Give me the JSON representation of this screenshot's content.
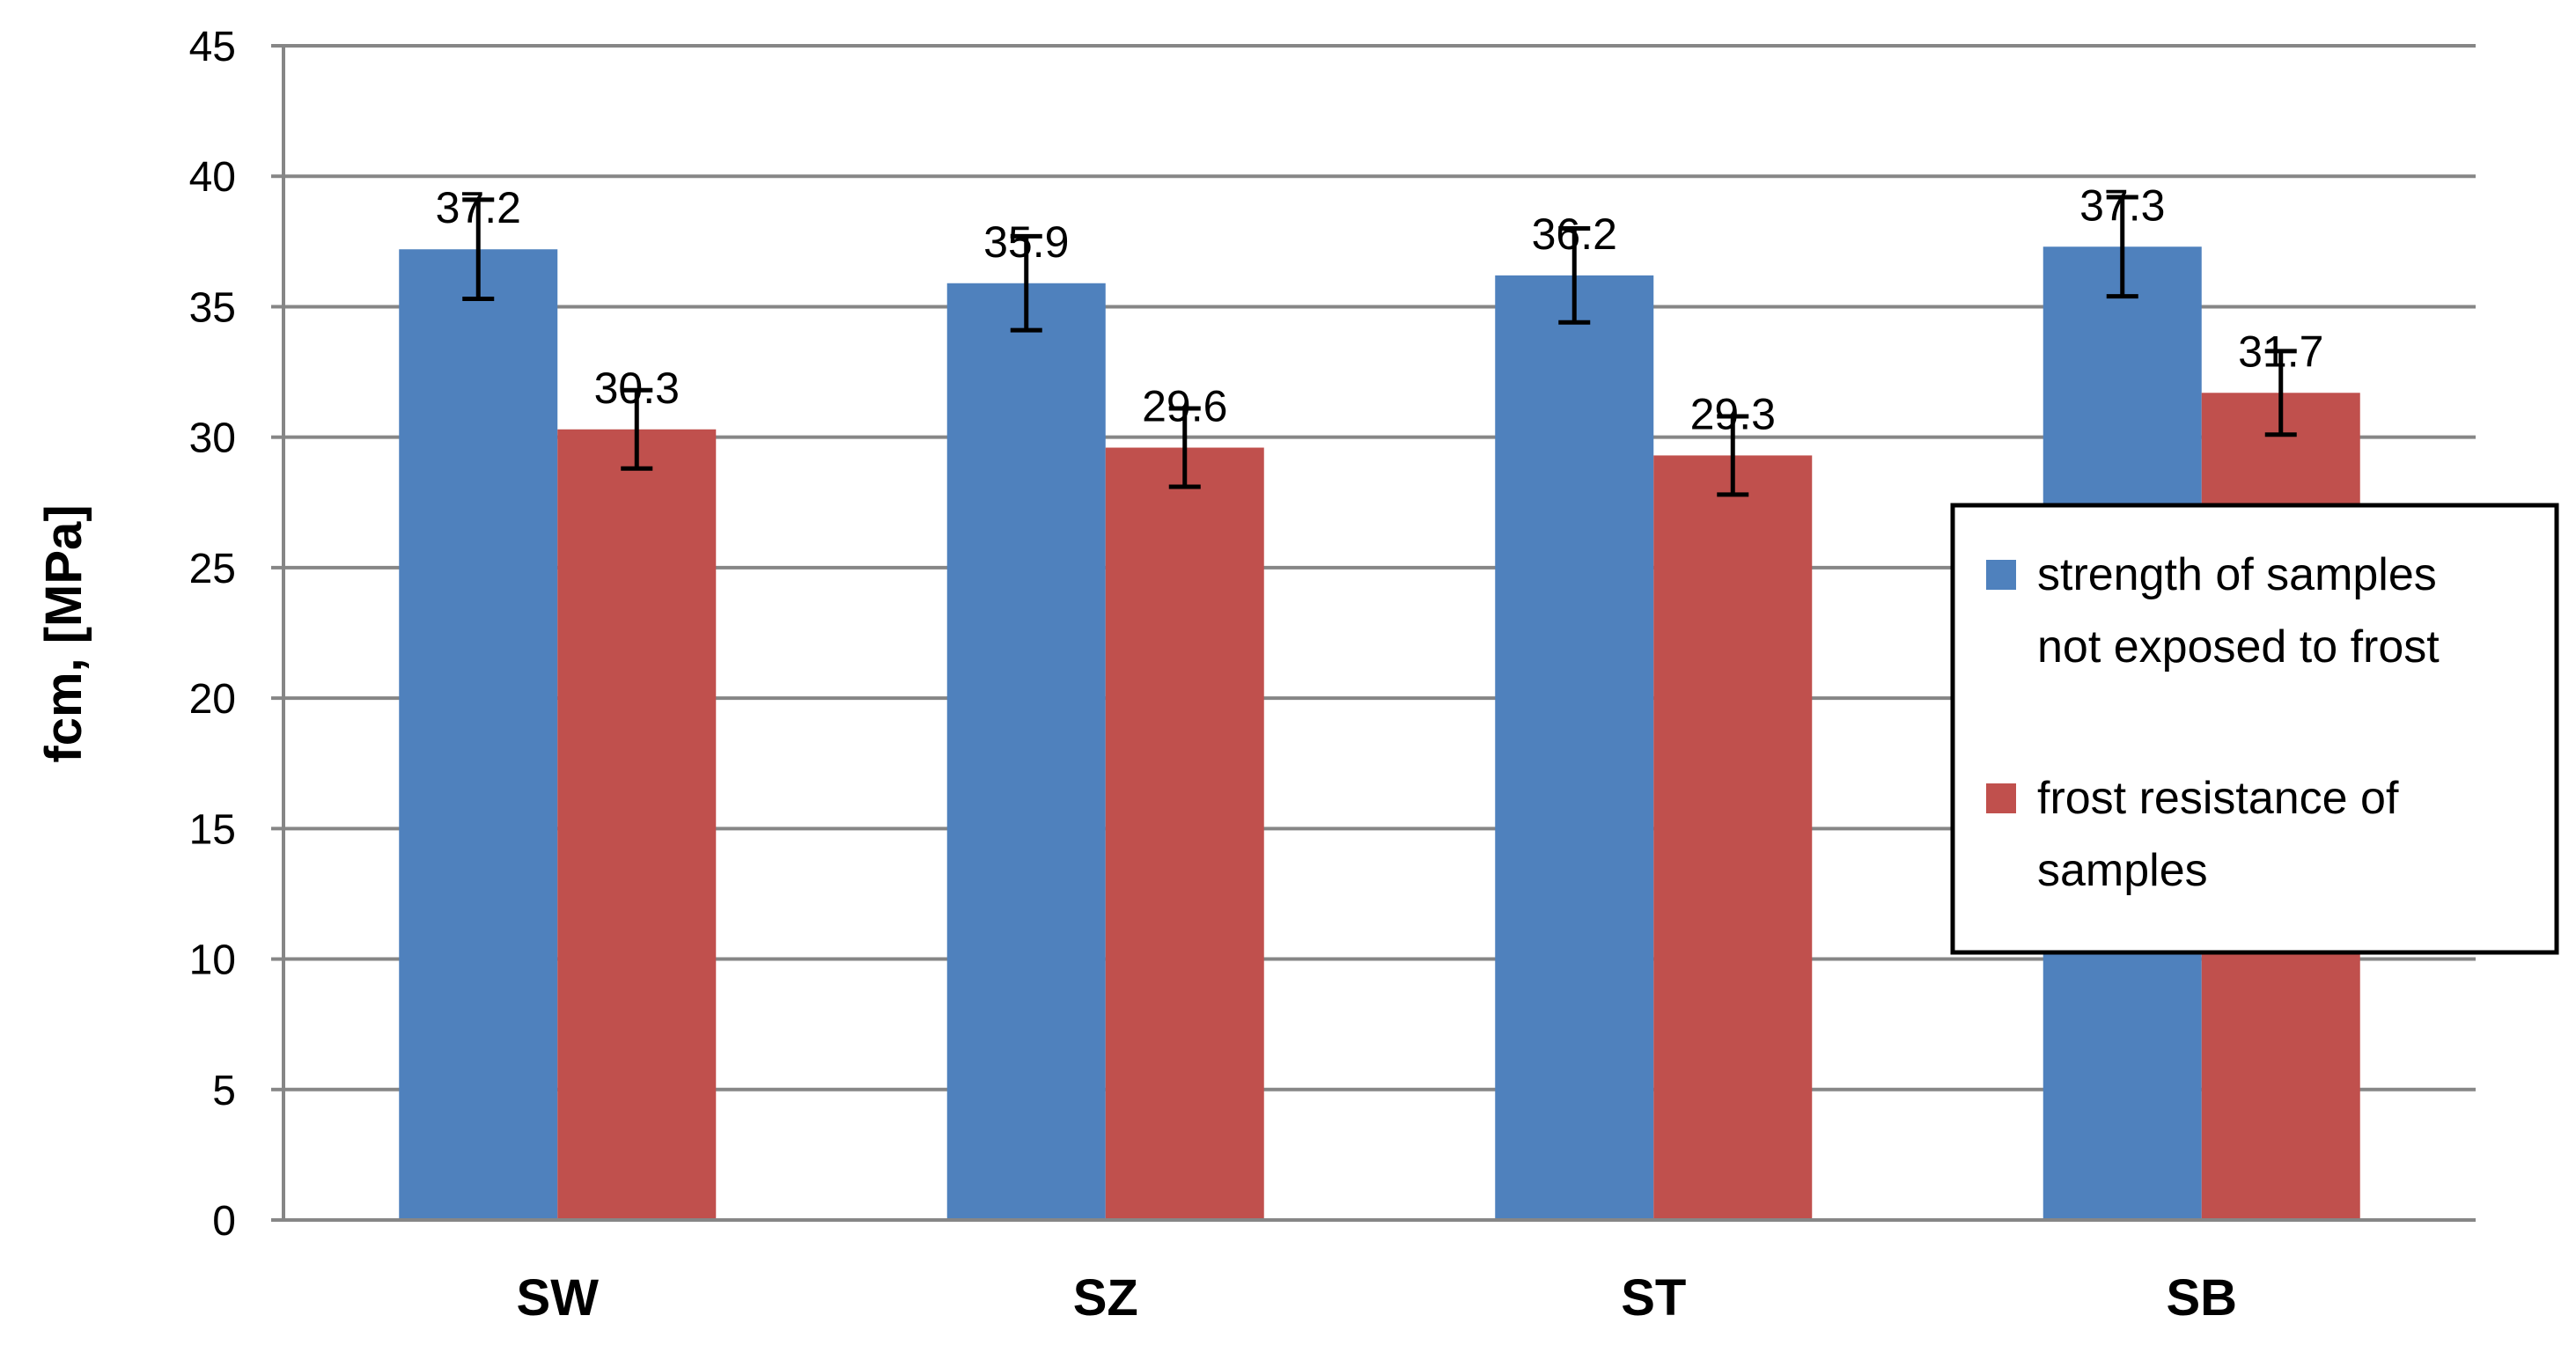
{
  "chart_data": {
    "type": "bar",
    "categories": [
      "SW",
      "SZ",
      "ST",
      "SB"
    ],
    "series": [
      {
        "name": "strength of samples not exposed to frost",
        "legend_lines": [
          "strength of samples",
          "not exposed to frost"
        ],
        "color": "#4F81BD",
        "values": [
          37.2,
          35.9,
          36.2,
          37.3
        ],
        "labels": [
          "37.2",
          "35.9",
          "36.2",
          "37.3"
        ],
        "error": [
          1.9,
          1.8,
          1.8,
          1.9
        ]
      },
      {
        "name": "frost resistance of samples",
        "legend_lines": [
          "frost resistance of",
          "samples"
        ],
        "color": "#C0504D",
        "values": [
          30.3,
          29.6,
          29.3,
          31.7
        ],
        "labels": [
          "30.3",
          "29.6",
          "29.3",
          "31.7"
        ],
        "error": [
          1.5,
          1.5,
          1.5,
          1.6
        ]
      }
    ],
    "ylabel": "fcm, [MPa]",
    "ylim": [
      0,
      45
    ],
    "yticks": [
      0,
      5,
      10,
      15,
      20,
      25,
      30,
      35,
      40,
      45
    ],
    "ytick_labels": [
      "0",
      "5",
      "10",
      "15",
      "20",
      "25",
      "30",
      "35",
      "40",
      "45"
    ],
    "grid": true,
    "legend_position": "right"
  }
}
